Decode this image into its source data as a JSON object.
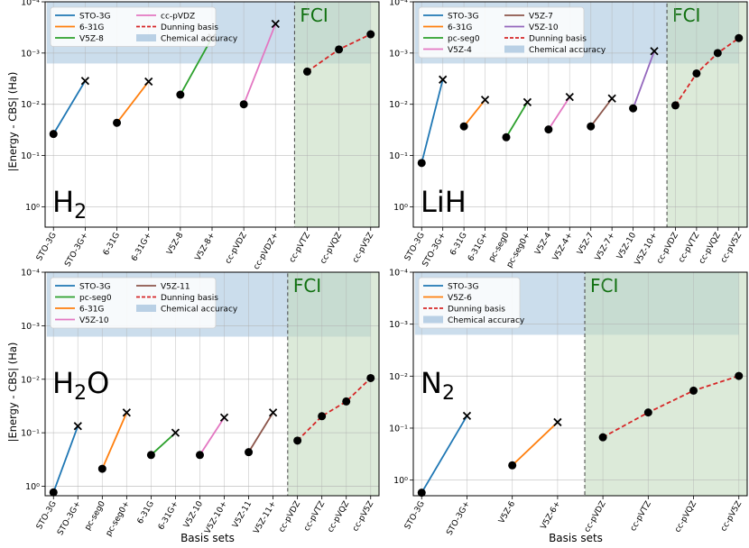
{
  "figure": {
    "xlabel": "Basis sets",
    "ylabel": "|Energy - CBS| (Ha)",
    "yscale": "log-inverted",
    "ytick_labels": [
      "10⁻⁴",
      "10⁻³",
      "10⁻²",
      "10⁻¹",
      "10⁰"
    ],
    "fci_label": "FCI"
  },
  "colors": {
    "STO-3G": "#1f77b4",
    "6-31G": "#ff7f0e",
    "V5Z-8": "#2ca02c",
    "pc-seg0": "#2ca02c",
    "cc-pVDZ": "#e377c2",
    "V5Z-4": "#e377c2",
    "V5Z-7": "#8c564b",
    "V5Z-10": "#9467bd",
    "V5Z-11": "#8c564b",
    "V5Z-6": "#ff7f0e",
    "dunning": "#d62728",
    "chem_acc": "#a9c6df",
    "fci_fill": "#c5dcbf",
    "fci_text": "#107010"
  },
  "chart_data": [
    {
      "type": "line",
      "molecule": "H₂",
      "mol_main": "H",
      "mol_sub": "2",
      "mol_tail": "",
      "categories": [
        "STO-3G",
        "STO-3G+",
        "6-31G",
        "6-31G+",
        "V5Z-8",
        "V5Z-8+",
        "cc-pVDZ",
        "cc-pVDZ+",
        "cc-pVTZ",
        "cc-pVQZ",
        "cc-pV5Z"
      ],
      "ylim": [
        0.0001,
        2.5
      ],
      "chemical_accuracy": 0.0016,
      "fci_start": 8,
      "legend": [
        {
          "label": "STO-3G",
          "style": "line",
          "colorKey": "STO-3G"
        },
        {
          "label": "6-31G",
          "style": "line",
          "colorKey": "6-31G"
        },
        {
          "label": "V5Z-8",
          "style": "line",
          "colorKey": "V5Z-8"
        },
        {
          "label": "cc-pVDZ",
          "style": "line",
          "colorKey": "cc-pVDZ"
        },
        {
          "label": "Dunning basis",
          "style": "dashed",
          "colorKey": "dunning"
        },
        {
          "label": "Chemical accuracy",
          "style": "patch",
          "colorKey": "chem_acc"
        }
      ],
      "legend_cols": 2,
      "series": [
        {
          "name": "STO-3G",
          "colorKey": "STO-3G",
          "from": [
            0,
            0.038
          ],
          "to": [
            1,
            0.0035
          ]
        },
        {
          "name": "6-31G",
          "colorKey": "6-31G",
          "from": [
            2,
            0.023
          ],
          "to": [
            3,
            0.0036
          ]
        },
        {
          "name": "V5Z-8",
          "colorKey": "V5Z-8",
          "from": [
            4,
            0.0065
          ],
          "to": [
            5,
            0.0005
          ]
        },
        {
          "name": "cc-pVDZ",
          "colorKey": "cc-pVDZ",
          "from": [
            6,
            0.01
          ],
          "to": [
            7,
            0.00027
          ]
        }
      ],
      "dunning": {
        "x": [
          8,
          9,
          10
        ],
        "values": [
          0.0023,
          0.00085,
          0.00043
        ]
      }
    },
    {
      "type": "line",
      "molecule": "LiH",
      "mol_main": "LiH",
      "mol_sub": "",
      "mol_tail": "",
      "categories": [
        "STO-3G",
        "STO-3G+",
        "6-31G",
        "6-31G+",
        "pc-seg0",
        "pc-seg0+",
        "V5Z-4",
        "V5Z-4+",
        "V5Z-7",
        "V5Z-7+",
        "V5Z-10",
        "V5Z-10+",
        "cc-pVDZ",
        "cc-pVTZ",
        "cc-pVQZ",
        "cc-pV5Z"
      ],
      "ylim": [
        0.0001,
        2.5
      ],
      "chemical_accuracy": 0.0016,
      "fci_start": 12,
      "legend": [
        {
          "label": "STO-3G",
          "style": "line",
          "colorKey": "STO-3G"
        },
        {
          "label": "6-31G",
          "style": "line",
          "colorKey": "6-31G"
        },
        {
          "label": "pc-seg0",
          "style": "line",
          "colorKey": "pc-seg0"
        },
        {
          "label": "V5Z-4",
          "style": "line",
          "colorKey": "V5Z-4"
        },
        {
          "label": "V5Z-7",
          "style": "line",
          "colorKey": "V5Z-7"
        },
        {
          "label": "V5Z-10",
          "style": "line",
          "colorKey": "V5Z-10"
        },
        {
          "label": "Dunning basis",
          "style": "dashed",
          "colorKey": "dunning"
        },
        {
          "label": "Chemical accuracy",
          "style": "patch",
          "colorKey": "chem_acc"
        }
      ],
      "legend_cols": 2,
      "series": [
        {
          "name": "STO-3G",
          "colorKey": "STO-3G",
          "from": [
            0,
            0.14
          ],
          "to": [
            1,
            0.0033
          ]
        },
        {
          "name": "6-31G",
          "colorKey": "6-31G",
          "from": [
            2,
            0.027
          ],
          "to": [
            3,
            0.0082
          ]
        },
        {
          "name": "pc-seg0",
          "colorKey": "pc-seg0",
          "from": [
            4,
            0.044
          ],
          "to": [
            5,
            0.0091
          ]
        },
        {
          "name": "V5Z-4",
          "colorKey": "V5Z-4",
          "from": [
            6,
            0.031
          ],
          "to": [
            7,
            0.0072
          ]
        },
        {
          "name": "V5Z-7",
          "colorKey": "V5Z-7",
          "from": [
            8,
            0.027
          ],
          "to": [
            9,
            0.0077
          ]
        },
        {
          "name": "V5Z-10",
          "colorKey": "V5Z-10",
          "from": [
            10,
            0.012
          ],
          "to": [
            11,
            0.00092
          ]
        }
      ],
      "dunning": {
        "x": [
          12,
          13,
          14,
          15
        ],
        "values": [
          0.0105,
          0.0025,
          0.001,
          0.00051
        ]
      }
    },
    {
      "type": "line",
      "molecule": "H₂O",
      "mol_main": "H",
      "mol_sub": "2",
      "mol_tail": "O",
      "categories": [
        "STO-3G",
        "STO-3G+",
        "pc-seg0",
        "pc-seg0+",
        "6-31G",
        "6-31G+",
        "V5Z-10",
        "V5Z-10+",
        "V5Z-11",
        "V5Z-11+",
        "cc-pVDZ",
        "cc-pVTZ",
        "cc-pVQZ",
        "cc-pV5Z"
      ],
      "ylim": [
        0.0001,
        1.5
      ],
      "chemical_accuracy": 0.0016,
      "fci_start": 10,
      "legend": [
        {
          "label": "STO-3G",
          "style": "line",
          "colorKey": "STO-3G"
        },
        {
          "label": "pc-seg0",
          "style": "line",
          "colorKey": "pc-seg0"
        },
        {
          "label": "6-31G",
          "style": "line",
          "colorKey": "6-31G"
        },
        {
          "label": "V5Z-10",
          "style": "line",
          "colorKey": "V5Z-4"
        },
        {
          "label": "V5Z-11",
          "style": "line",
          "colorKey": "V5Z-11"
        },
        {
          "label": "Dunning basis",
          "style": "dashed",
          "colorKey": "dunning"
        },
        {
          "label": "Chemical accuracy",
          "style": "patch",
          "colorKey": "chem_acc"
        }
      ],
      "legend_cols": 2,
      "series": [
        {
          "name": "STO-3G",
          "colorKey": "STO-3G",
          "from": [
            0,
            1.3
          ],
          "to": [
            1,
            0.075
          ]
        },
        {
          "name": "pc-seg0",
          "colorKey": "6-31G",
          "from": [
            2,
            0.47
          ],
          "to": [
            3,
            0.042
          ]
        },
        {
          "name": "6-31G",
          "colorKey": "pc-seg0",
          "from": [
            4,
            0.26
          ],
          "to": [
            5,
            0.1
          ]
        },
        {
          "name": "V5Z-10",
          "colorKey": "V5Z-4",
          "from": [
            6,
            0.26
          ],
          "to": [
            7,
            0.052
          ]
        },
        {
          "name": "V5Z-11",
          "colorKey": "V5Z-11",
          "from": [
            8,
            0.23
          ],
          "to": [
            9,
            0.042
          ]
        }
      ],
      "dunning": {
        "x": [
          10,
          11,
          12,
          13
        ],
        "values": [
          0.14,
          0.049,
          0.026,
          0.0095
        ]
      }
    },
    {
      "type": "line",
      "molecule": "N₂",
      "mol_main": "N",
      "mol_sub": "2",
      "mol_tail": "",
      "categories": [
        "STO-3G",
        "STO-3G+",
        "V5Z-6",
        "V5Z-6+",
        "cc-pVDZ",
        "cc-pVTZ",
        "cc-pVQZ",
        "cc-pV5Z"
      ],
      "ylim": [
        0.0001,
        2.0
      ],
      "chemical_accuracy": 0.0016,
      "fci_start": 4,
      "legend": [
        {
          "label": "STO-3G",
          "style": "line",
          "colorKey": "STO-3G"
        },
        {
          "label": "V5Z-6",
          "style": "line",
          "colorKey": "V5Z-6"
        },
        {
          "label": "Dunning basis",
          "style": "dashed",
          "colorKey": "dunning"
        },
        {
          "label": "Chemical accuracy",
          "style": "patch",
          "colorKey": "chem_acc"
        }
      ],
      "legend_cols": 1,
      "series": [
        {
          "name": "STO-3G",
          "colorKey": "STO-3G",
          "from": [
            0,
            1.75
          ],
          "to": [
            1,
            0.058
          ]
        },
        {
          "name": "V5Z-6",
          "colorKey": "V5Z-6",
          "from": [
            2,
            0.52
          ],
          "to": [
            3,
            0.077
          ]
        }
      ],
      "dunning": {
        "x": [
          4,
          5,
          6,
          7
        ],
        "values": [
          0.15,
          0.05,
          0.019,
          0.0099
        ]
      }
    }
  ]
}
